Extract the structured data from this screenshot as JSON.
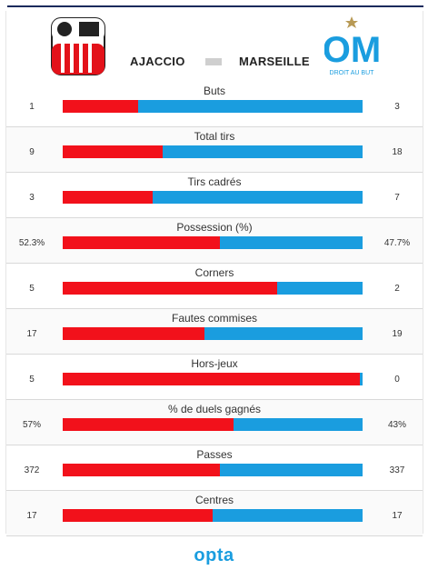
{
  "match": {
    "home_team": "AJACCIO",
    "away_team": "MARSEILLE",
    "away_crest_caption": "DROIT AU BUT"
  },
  "stats": [
    {
      "label": "Buts",
      "home": "1",
      "away": "3",
      "home_share": 0.25
    },
    {
      "label": "Total tirs",
      "home": "9",
      "away": "18",
      "home_share": 0.333
    },
    {
      "label": "Tirs cadrés",
      "home": "3",
      "away": "7",
      "home_share": 0.3
    },
    {
      "label": "Possession (%)",
      "home": "52.3%",
      "away": "47.7%",
      "home_share": 0.523
    },
    {
      "label": "Corners",
      "home": "5",
      "away": "2",
      "home_share": 0.714
    },
    {
      "label": "Fautes commises",
      "home": "17",
      "away": "19",
      "home_share": 0.472
    },
    {
      "label": "Hors-jeux",
      "home": "5",
      "away": "0",
      "home_share": 0.99
    },
    {
      "label": "% de duels gagnés",
      "home": "57%",
      "away": "43%",
      "home_share": 0.57
    },
    {
      "label": "Passes",
      "home": "372",
      "away": "337",
      "home_share": 0.525
    },
    {
      "label": "Centres",
      "home": "17",
      "away": "17",
      "home_share": 0.5
    }
  ],
  "colors": {
    "home": "#f2111b",
    "away": "#1a9ddf"
  },
  "footer": {
    "brand": "opta"
  }
}
